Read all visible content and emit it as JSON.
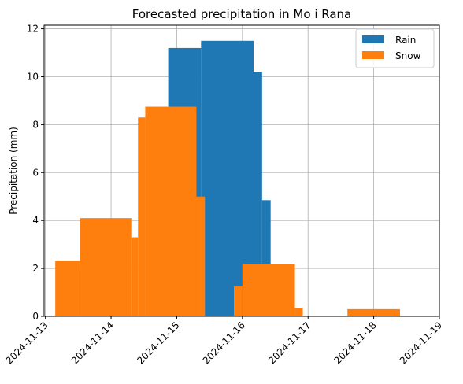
{
  "chart_data": {
    "type": "bar",
    "title": "Forecasted precipitation in Mo i Rana",
    "xlabel": "",
    "ylabel": "Precipitation (mm)",
    "x_axis_type": "date",
    "xlim_days": [
      -0.02,
      6.0
    ],
    "ylim": [
      0,
      12.15
    ],
    "x_ticks": [
      "2024-11-13",
      "2024-11-14",
      "2024-11-15",
      "2024-11-16",
      "2024-11-17",
      "2024-11-18",
      "2024-11-19"
    ],
    "y_ticks": [
      0,
      2,
      4,
      6,
      8,
      10,
      12
    ],
    "grid": true,
    "legend_position": "top-right",
    "series": [
      {
        "name": "Rain",
        "color": "#1f77b4",
        "bars": [
          {
            "start": 1.87,
            "end": 2.37,
            "value": 11.2
          },
          {
            "start": 2.37,
            "end": 3.17,
            "value": 11.5
          },
          {
            "start": 3.17,
            "end": 3.3,
            "value": 10.2
          },
          {
            "start": 3.3,
            "end": 3.43,
            "value": 4.85
          }
        ]
      },
      {
        "name": "Snow",
        "color": "#ff7f0e",
        "bars": [
          {
            "start": 0.15,
            "end": 0.53,
            "value": 2.3
          },
          {
            "start": 0.53,
            "end": 1.32,
            "value": 4.1
          },
          {
            "start": 1.32,
            "end": 1.41,
            "value": 3.3
          },
          {
            "start": 1.41,
            "end": 1.52,
            "value": 8.3
          },
          {
            "start": 1.52,
            "end": 2.3,
            "value": 8.75
          },
          {
            "start": 2.3,
            "end": 2.43,
            "value": 5.0
          },
          {
            "start": 2.87,
            "end": 3.0,
            "value": 1.25
          },
          {
            "start": 3.0,
            "end": 3.8,
            "value": 2.2
          },
          {
            "start": 3.8,
            "end": 3.92,
            "value": 0.35
          },
          {
            "start": 4.6,
            "end": 5.4,
            "value": 0.3
          }
        ]
      }
    ]
  }
}
